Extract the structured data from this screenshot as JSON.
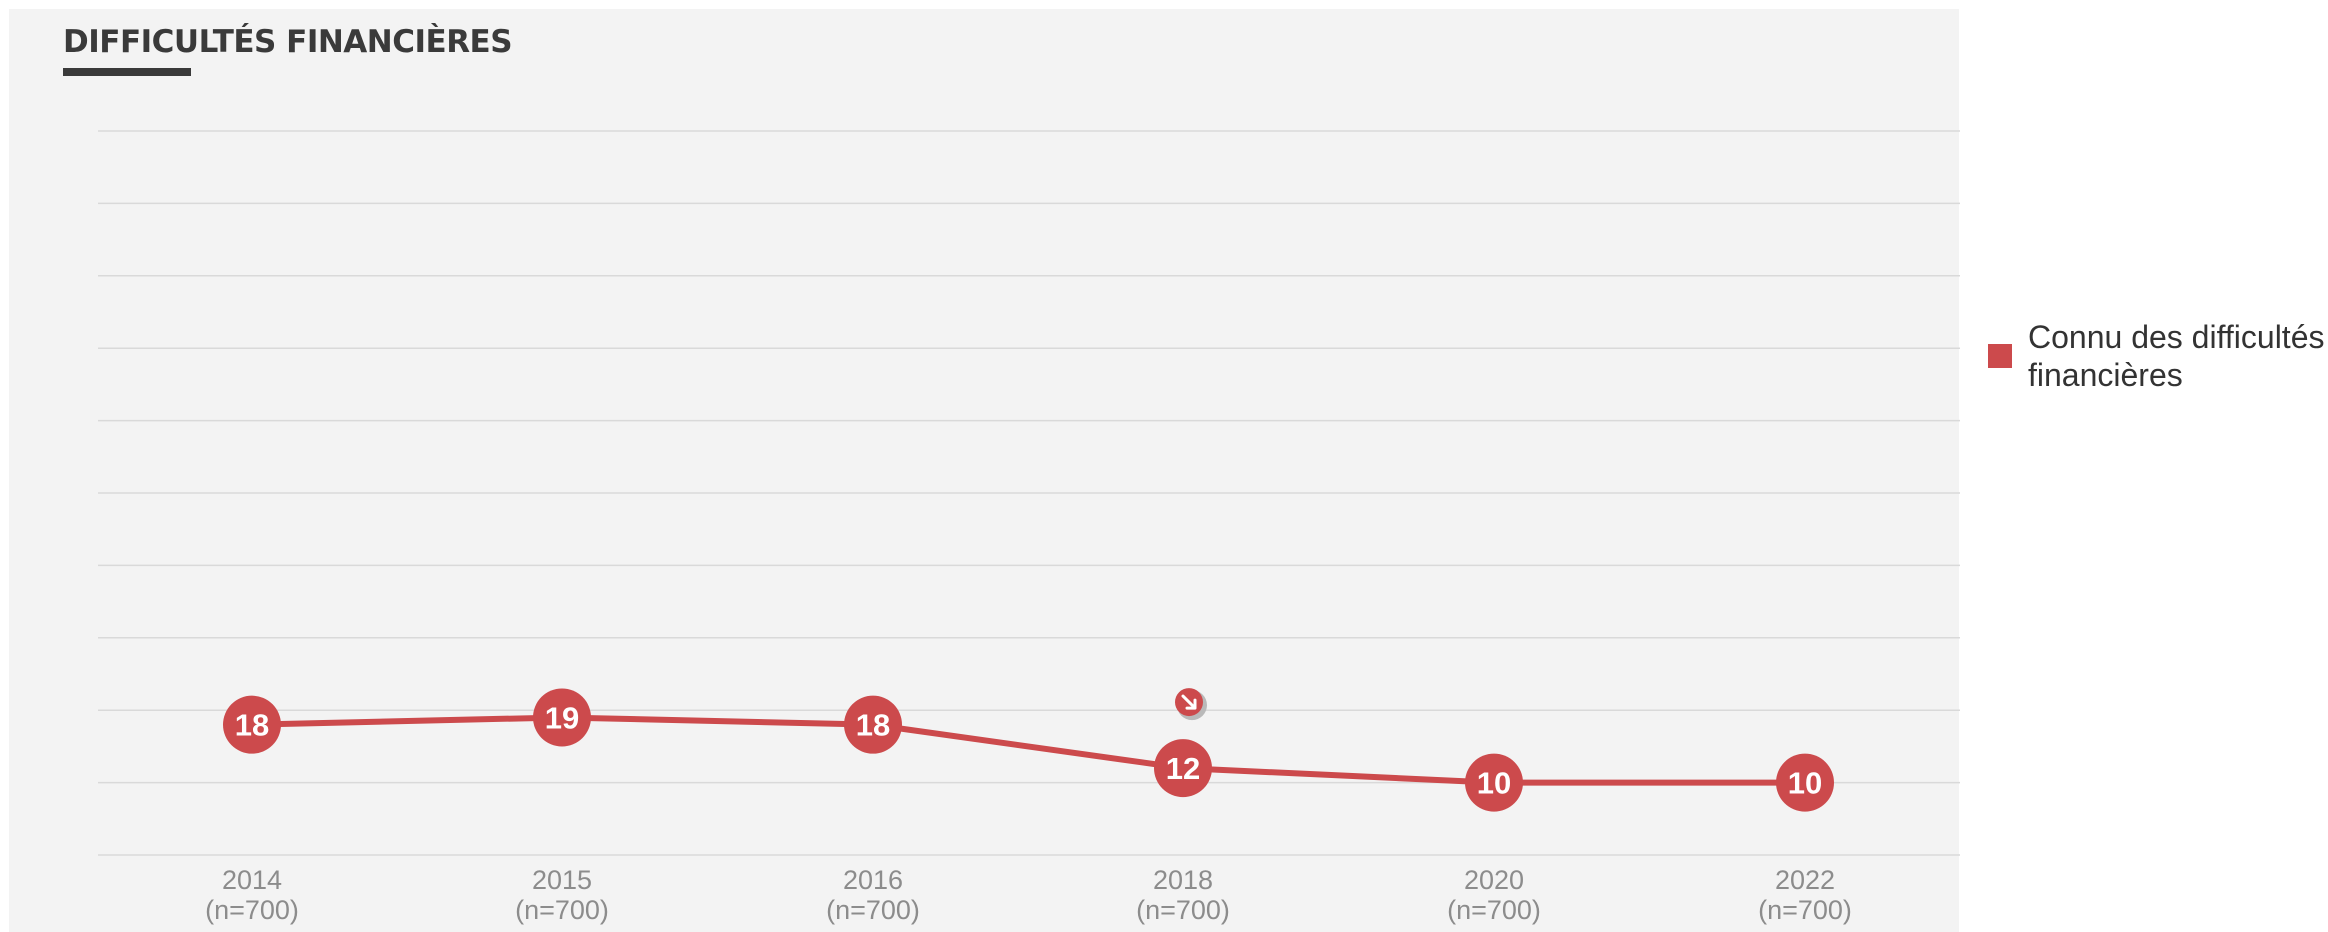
{
  "title": "DIFFICULTÉS FINANCIÈRES",
  "legend": {
    "label": "Connu des difficultés financières",
    "color": "#cc4a4c"
  },
  "colors": {
    "series": "#cc4a4c",
    "grid": "#d9d9d9",
    "tick": "#8c8c8c",
    "panel": "#f3f3f3"
  },
  "chart_data": {
    "type": "line",
    "title": "DIFFICULTÉS FINANCIÈRES",
    "xlabel": "",
    "ylabel": "",
    "categories": [
      "2014",
      "2015",
      "2016",
      "2018",
      "2020",
      "2022"
    ],
    "category_sublabels": [
      "(n=700)",
      "(n=700)",
      "(n=700)",
      "(n=700)",
      "(n=700)",
      "(n=700)"
    ],
    "series": [
      {
        "name": "Connu des difficultés financières",
        "values": [
          18,
          19,
          18,
          12,
          10,
          10
        ],
        "labels": [
          "18",
          "19",
          "18",
          "12",
          "10",
          "10"
        ]
      }
    ],
    "ylim": [
      0,
      100
    ],
    "grid": true,
    "legend_position": "right",
    "annotations": [
      {
        "category": "2018",
        "icon": "down-right-arrow-icon",
        "meaning": "significant decrease"
      }
    ]
  }
}
